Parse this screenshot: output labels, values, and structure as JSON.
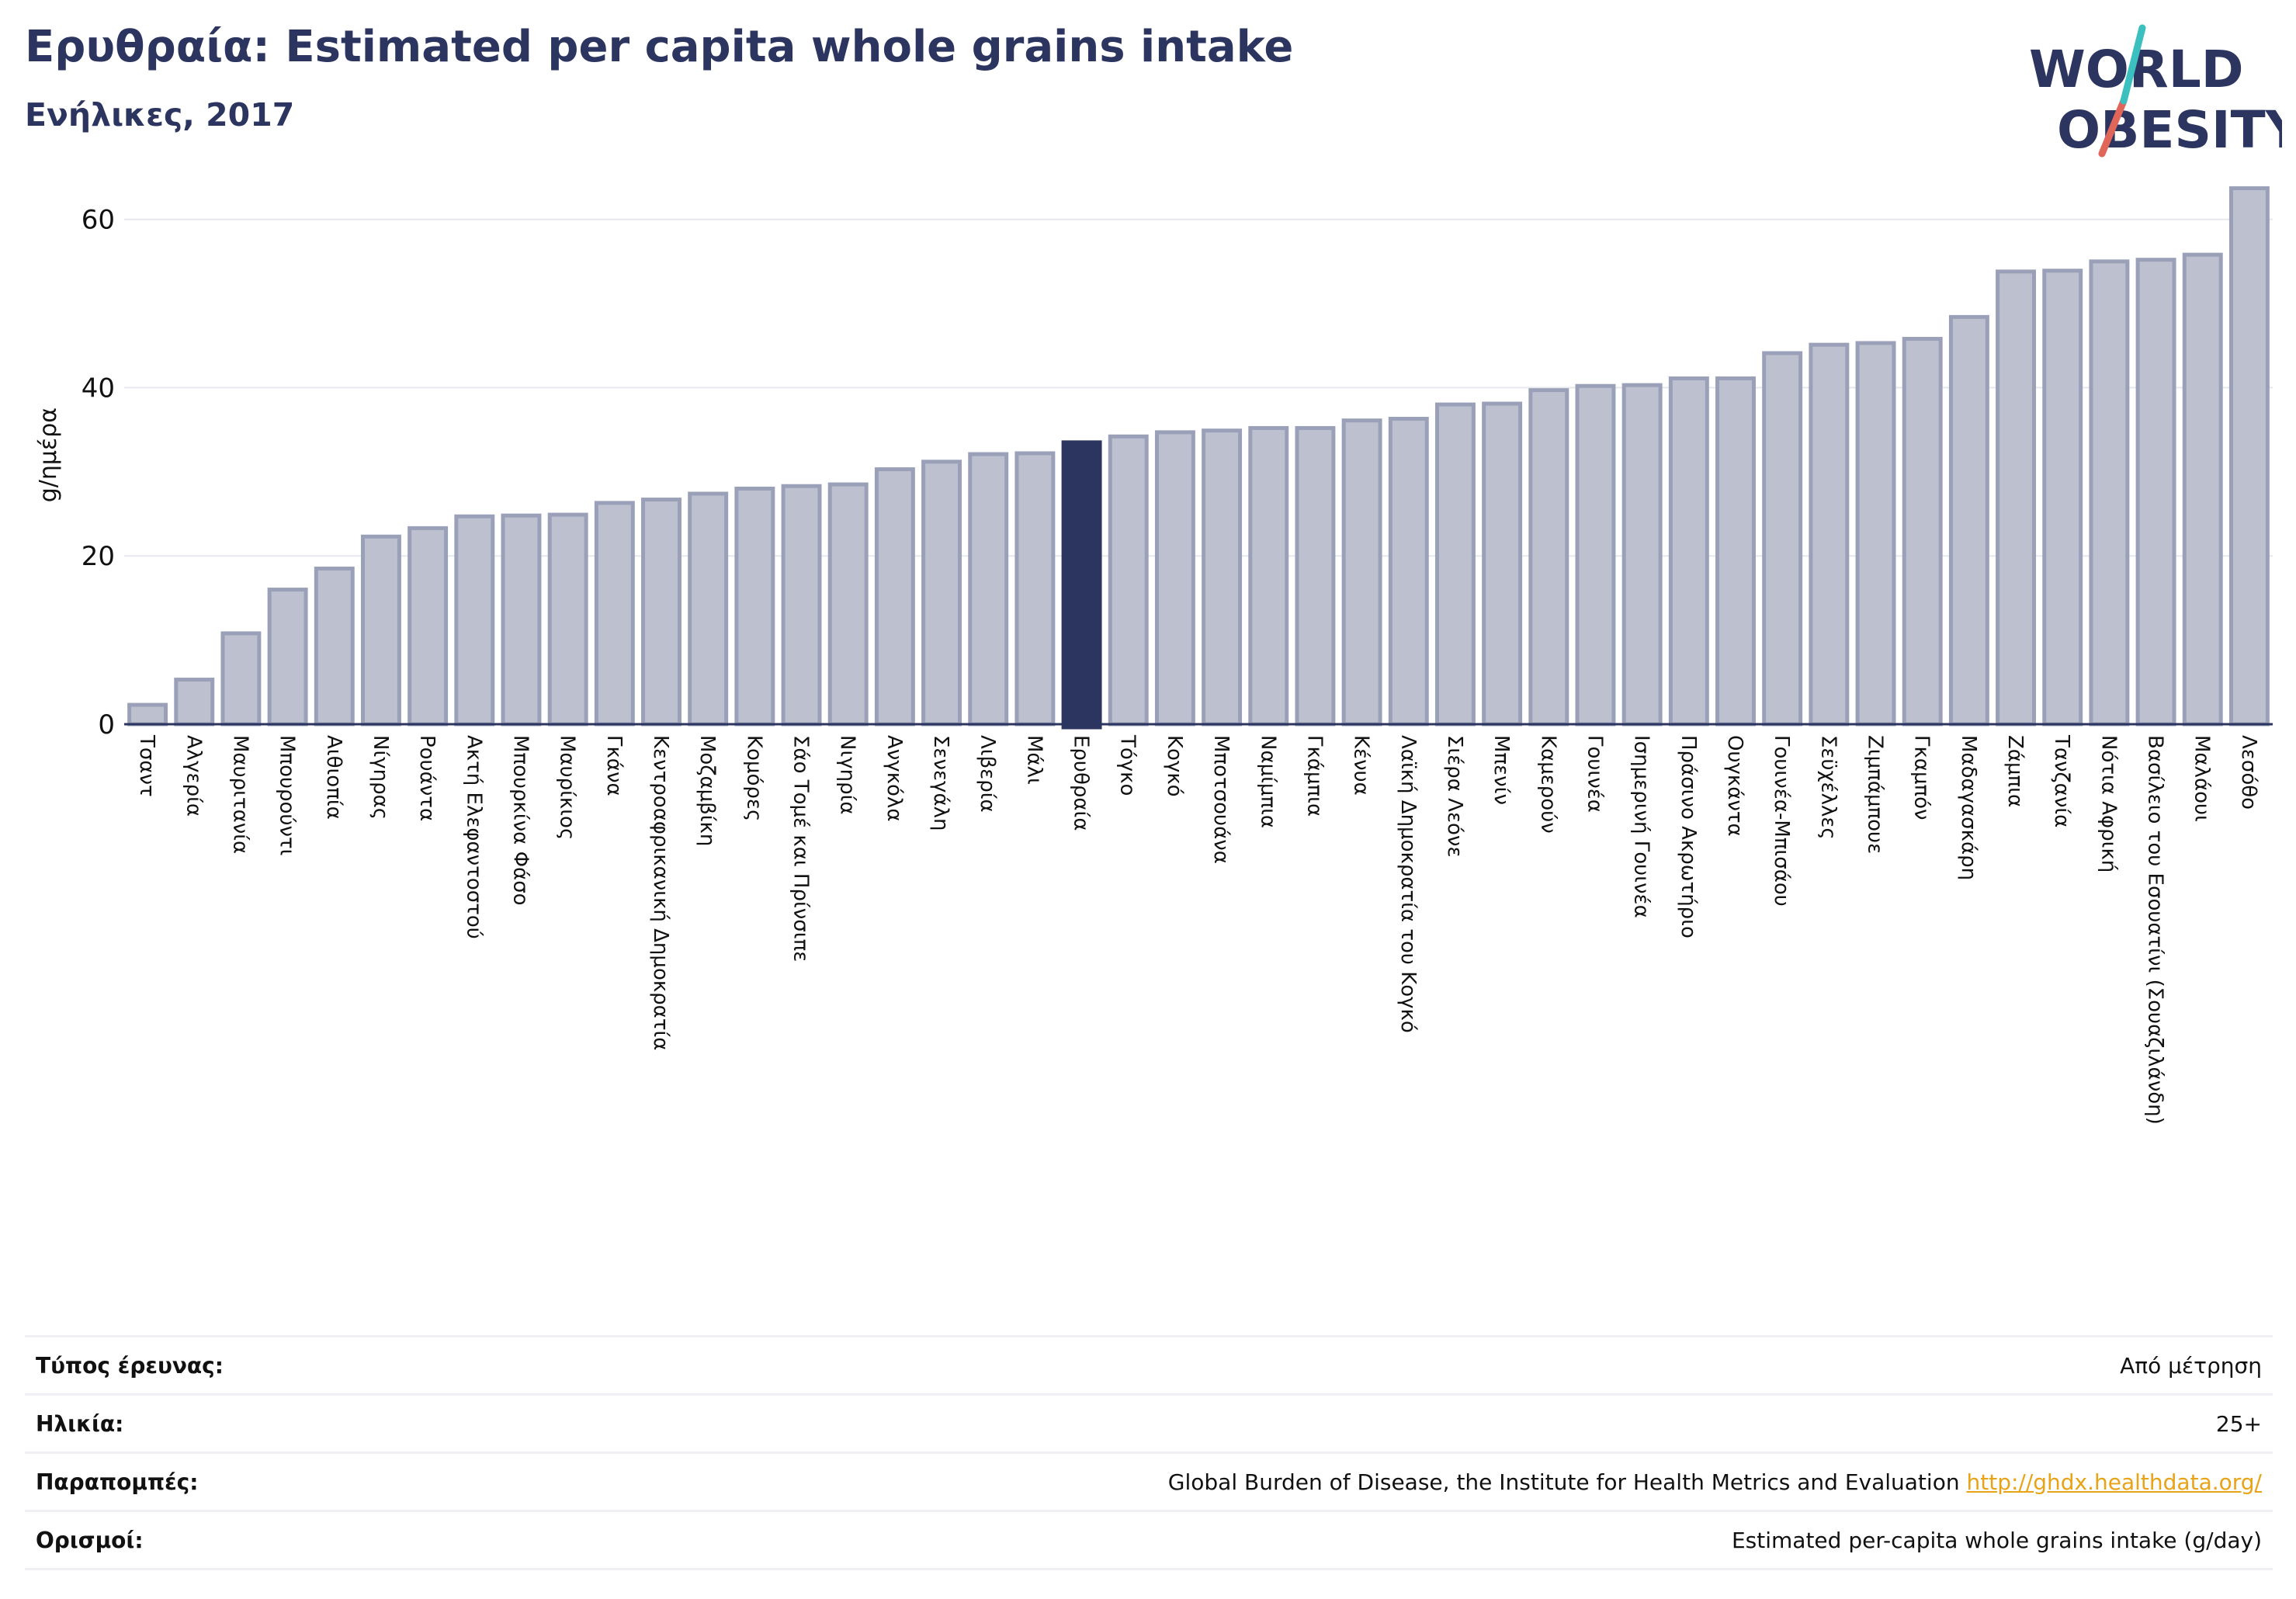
{
  "header": {
    "title": "Ερυθραία: Estimated per capita whole grains intake",
    "subtitle": "Ενήλικες, 2017"
  },
  "logo": {
    "line1": "WORLD",
    "line2": "OBESITY",
    "accent_teal": "#3bbfbf",
    "accent_red": "#e0665a",
    "text_color": "#2b3560"
  },
  "chart_data": {
    "type": "bar",
    "ylabel": "g/ημέρα",
    "ylim": [
      0,
      65
    ],
    "yticks": [
      0,
      20,
      40,
      60
    ],
    "grid": true,
    "highlight": "Ερυθραία",
    "colors": {
      "bar": "#bdc0ce",
      "bar_border": "#9aa0b8",
      "highlight": "#2b3560"
    },
    "categories": [
      "Τσαντ",
      "Αλγερία",
      "Μαυριτανία",
      "Μπουρούντι",
      "Αιθιοπία",
      "Νίγηρας",
      "Ρουάντα",
      "Ακτή Ελεφαντοστού",
      "Μπουρκίνα Φάσο",
      "Μαυρίκιος",
      "Γκάνα",
      "Κεντροαφρικανική Δημοκρατία",
      "Μοζαμβίκη",
      "Κομόρες",
      "Σάο Τομέ και Πρίνσιπε",
      "Νιγηρία",
      "Ανγκόλα",
      "Σενεγάλη",
      "Λιβερία",
      "Μάλι",
      "Ερυθραία",
      "Τόγκο",
      "Κογκό",
      "Μποτσουάνα",
      "Ναμίμπια",
      "Γκάμπια",
      "Κένυα",
      "Λαϊκή Δημοκρατία του Κογκό",
      "Σιέρα Λεόνε",
      "Μπενίν",
      "Καμερούν",
      "Γουινέα",
      "Ισημερινή Γουινέα",
      "Πράσινο Ακρωτήριο",
      "Ουγκάντα",
      "Γουινέα-Μπισάου",
      "Σεϋχέλλες",
      "Ζιμπάμπουε",
      "Γκαμπόν",
      "Μαδαγασκάρη",
      "Ζάμπια",
      "Τανζανία",
      "Νότια Αφρική",
      "Βασίλειο του Εσουατίνι (Σουαζιλάνδη)",
      "Μαλάουι",
      "Λεσόθο"
    ],
    "values": [
      2.3,
      5.3,
      10.8,
      16.0,
      18.5,
      22.3,
      23.3,
      24.7,
      24.8,
      24.9,
      26.3,
      26.7,
      27.4,
      28.0,
      28.3,
      28.5,
      30.3,
      31.2,
      32.1,
      32.2,
      33.5,
      34.2,
      34.7,
      34.9,
      35.2,
      35.2,
      36.1,
      36.3,
      38.0,
      38.1,
      39.7,
      40.2,
      40.3,
      41.1,
      41.1,
      44.1,
      45.1,
      45.3,
      45.8,
      48.4,
      53.8,
      53.9,
      55.0,
      55.2,
      55.8,
      63.7
    ]
  },
  "info": [
    {
      "label": "Τύπος έρευνας:",
      "value": "Από μέτρηση"
    },
    {
      "label": "Ηλικία:",
      "value": "25+"
    },
    {
      "label": "Παραπομπές:",
      "value": "Global Burden of Disease, the Institute for Health Metrics and Evaluation",
      "link": "http://ghdx.healthdata.org/"
    },
    {
      "label": "Ορισμοί:",
      "value": "Estimated per-capita whole grains intake (g/day)"
    }
  ]
}
